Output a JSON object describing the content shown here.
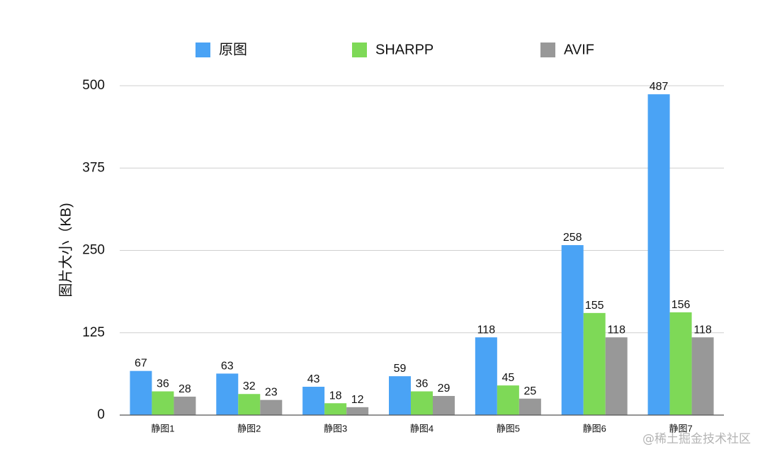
{
  "chart_data": {
    "type": "bar",
    "title": "",
    "xlabel": "",
    "ylabel": "图片大小（KB)",
    "ylim": [
      0,
      500
    ],
    "yticks": [
      0,
      125,
      250,
      375,
      500
    ],
    "grid": true,
    "legend_position": "top",
    "categories": [
      "静图1",
      "静图2",
      "静图3",
      "静图4",
      "静图5",
      "静图6",
      "静图7"
    ],
    "series": [
      {
        "name": "原图",
        "color": "#4aa3f5",
        "values": [
          67,
          63,
          43,
          59,
          118,
          258,
          487
        ]
      },
      {
        "name": "SHARPP",
        "color": "#7ed957",
        "values": [
          36,
          32,
          18,
          36,
          45,
          155,
          156
        ]
      },
      {
        "name": "AVIF",
        "color": "#989898",
        "values": [
          28,
          23,
          12,
          29,
          25,
          118,
          118
        ]
      }
    ]
  },
  "watermark": "@稀土掘金技术社区"
}
